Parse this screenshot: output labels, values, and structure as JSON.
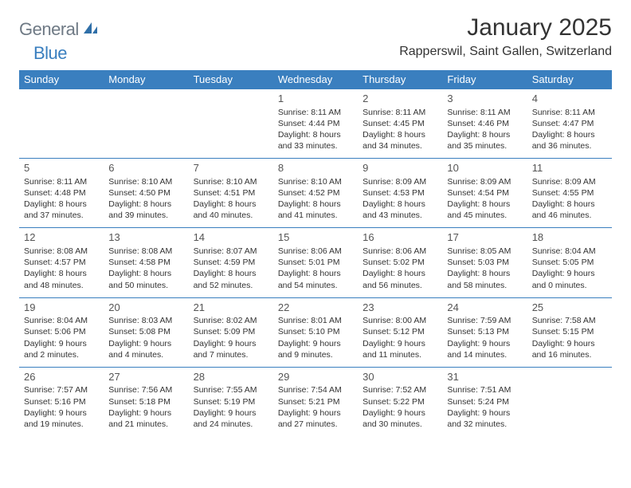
{
  "logo": {
    "text1": "General",
    "text2": "Blue"
  },
  "title": "January 2025",
  "location": "Rapperswil, Saint Gallen, Switzerland",
  "colors": {
    "header_bg": "#3a7fbf",
    "header_text": "#ffffff",
    "cell_border": "#3a7fbf",
    "text": "#333333",
    "logo_gray": "#6f7a85",
    "logo_blue": "#3a7fbf",
    "background": "#ffffff"
  },
  "day_headers": [
    "Sunday",
    "Monday",
    "Tuesday",
    "Wednesday",
    "Thursday",
    "Friday",
    "Saturday"
  ],
  "weeks": [
    [
      null,
      null,
      null,
      {
        "n": "1",
        "sr": "8:11 AM",
        "ss": "4:44 PM",
        "dl": "8 hours and 33 minutes."
      },
      {
        "n": "2",
        "sr": "8:11 AM",
        "ss": "4:45 PM",
        "dl": "8 hours and 34 minutes."
      },
      {
        "n": "3",
        "sr": "8:11 AM",
        "ss": "4:46 PM",
        "dl": "8 hours and 35 minutes."
      },
      {
        "n": "4",
        "sr": "8:11 AM",
        "ss": "4:47 PM",
        "dl": "8 hours and 36 minutes."
      }
    ],
    [
      {
        "n": "5",
        "sr": "8:11 AM",
        "ss": "4:48 PM",
        "dl": "8 hours and 37 minutes."
      },
      {
        "n": "6",
        "sr": "8:10 AM",
        "ss": "4:50 PM",
        "dl": "8 hours and 39 minutes."
      },
      {
        "n": "7",
        "sr": "8:10 AM",
        "ss": "4:51 PM",
        "dl": "8 hours and 40 minutes."
      },
      {
        "n": "8",
        "sr": "8:10 AM",
        "ss": "4:52 PM",
        "dl": "8 hours and 41 minutes."
      },
      {
        "n": "9",
        "sr": "8:09 AM",
        "ss": "4:53 PM",
        "dl": "8 hours and 43 minutes."
      },
      {
        "n": "10",
        "sr": "8:09 AM",
        "ss": "4:54 PM",
        "dl": "8 hours and 45 minutes."
      },
      {
        "n": "11",
        "sr": "8:09 AM",
        "ss": "4:55 PM",
        "dl": "8 hours and 46 minutes."
      }
    ],
    [
      {
        "n": "12",
        "sr": "8:08 AM",
        "ss": "4:57 PM",
        "dl": "8 hours and 48 minutes."
      },
      {
        "n": "13",
        "sr": "8:08 AM",
        "ss": "4:58 PM",
        "dl": "8 hours and 50 minutes."
      },
      {
        "n": "14",
        "sr": "8:07 AM",
        "ss": "4:59 PM",
        "dl": "8 hours and 52 minutes."
      },
      {
        "n": "15",
        "sr": "8:06 AM",
        "ss": "5:01 PM",
        "dl": "8 hours and 54 minutes."
      },
      {
        "n": "16",
        "sr": "8:06 AM",
        "ss": "5:02 PM",
        "dl": "8 hours and 56 minutes."
      },
      {
        "n": "17",
        "sr": "8:05 AM",
        "ss": "5:03 PM",
        "dl": "8 hours and 58 minutes."
      },
      {
        "n": "18",
        "sr": "8:04 AM",
        "ss": "5:05 PM",
        "dl": "9 hours and 0 minutes."
      }
    ],
    [
      {
        "n": "19",
        "sr": "8:04 AM",
        "ss": "5:06 PM",
        "dl": "9 hours and 2 minutes."
      },
      {
        "n": "20",
        "sr": "8:03 AM",
        "ss": "5:08 PM",
        "dl": "9 hours and 4 minutes."
      },
      {
        "n": "21",
        "sr": "8:02 AM",
        "ss": "5:09 PM",
        "dl": "9 hours and 7 minutes."
      },
      {
        "n": "22",
        "sr": "8:01 AM",
        "ss": "5:10 PM",
        "dl": "9 hours and 9 minutes."
      },
      {
        "n": "23",
        "sr": "8:00 AM",
        "ss": "5:12 PM",
        "dl": "9 hours and 11 minutes."
      },
      {
        "n": "24",
        "sr": "7:59 AM",
        "ss": "5:13 PM",
        "dl": "9 hours and 14 minutes."
      },
      {
        "n": "25",
        "sr": "7:58 AM",
        "ss": "5:15 PM",
        "dl": "9 hours and 16 minutes."
      }
    ],
    [
      {
        "n": "26",
        "sr": "7:57 AM",
        "ss": "5:16 PM",
        "dl": "9 hours and 19 minutes."
      },
      {
        "n": "27",
        "sr": "7:56 AM",
        "ss": "5:18 PM",
        "dl": "9 hours and 21 minutes."
      },
      {
        "n": "28",
        "sr": "7:55 AM",
        "ss": "5:19 PM",
        "dl": "9 hours and 24 minutes."
      },
      {
        "n": "29",
        "sr": "7:54 AM",
        "ss": "5:21 PM",
        "dl": "9 hours and 27 minutes."
      },
      {
        "n": "30",
        "sr": "7:52 AM",
        "ss": "5:22 PM",
        "dl": "9 hours and 30 minutes."
      },
      {
        "n": "31",
        "sr": "7:51 AM",
        "ss": "5:24 PM",
        "dl": "9 hours and 32 minutes."
      },
      null
    ]
  ],
  "labels": {
    "sunrise": "Sunrise: ",
    "sunset": "Sunset: ",
    "daylight": "Daylight: "
  }
}
